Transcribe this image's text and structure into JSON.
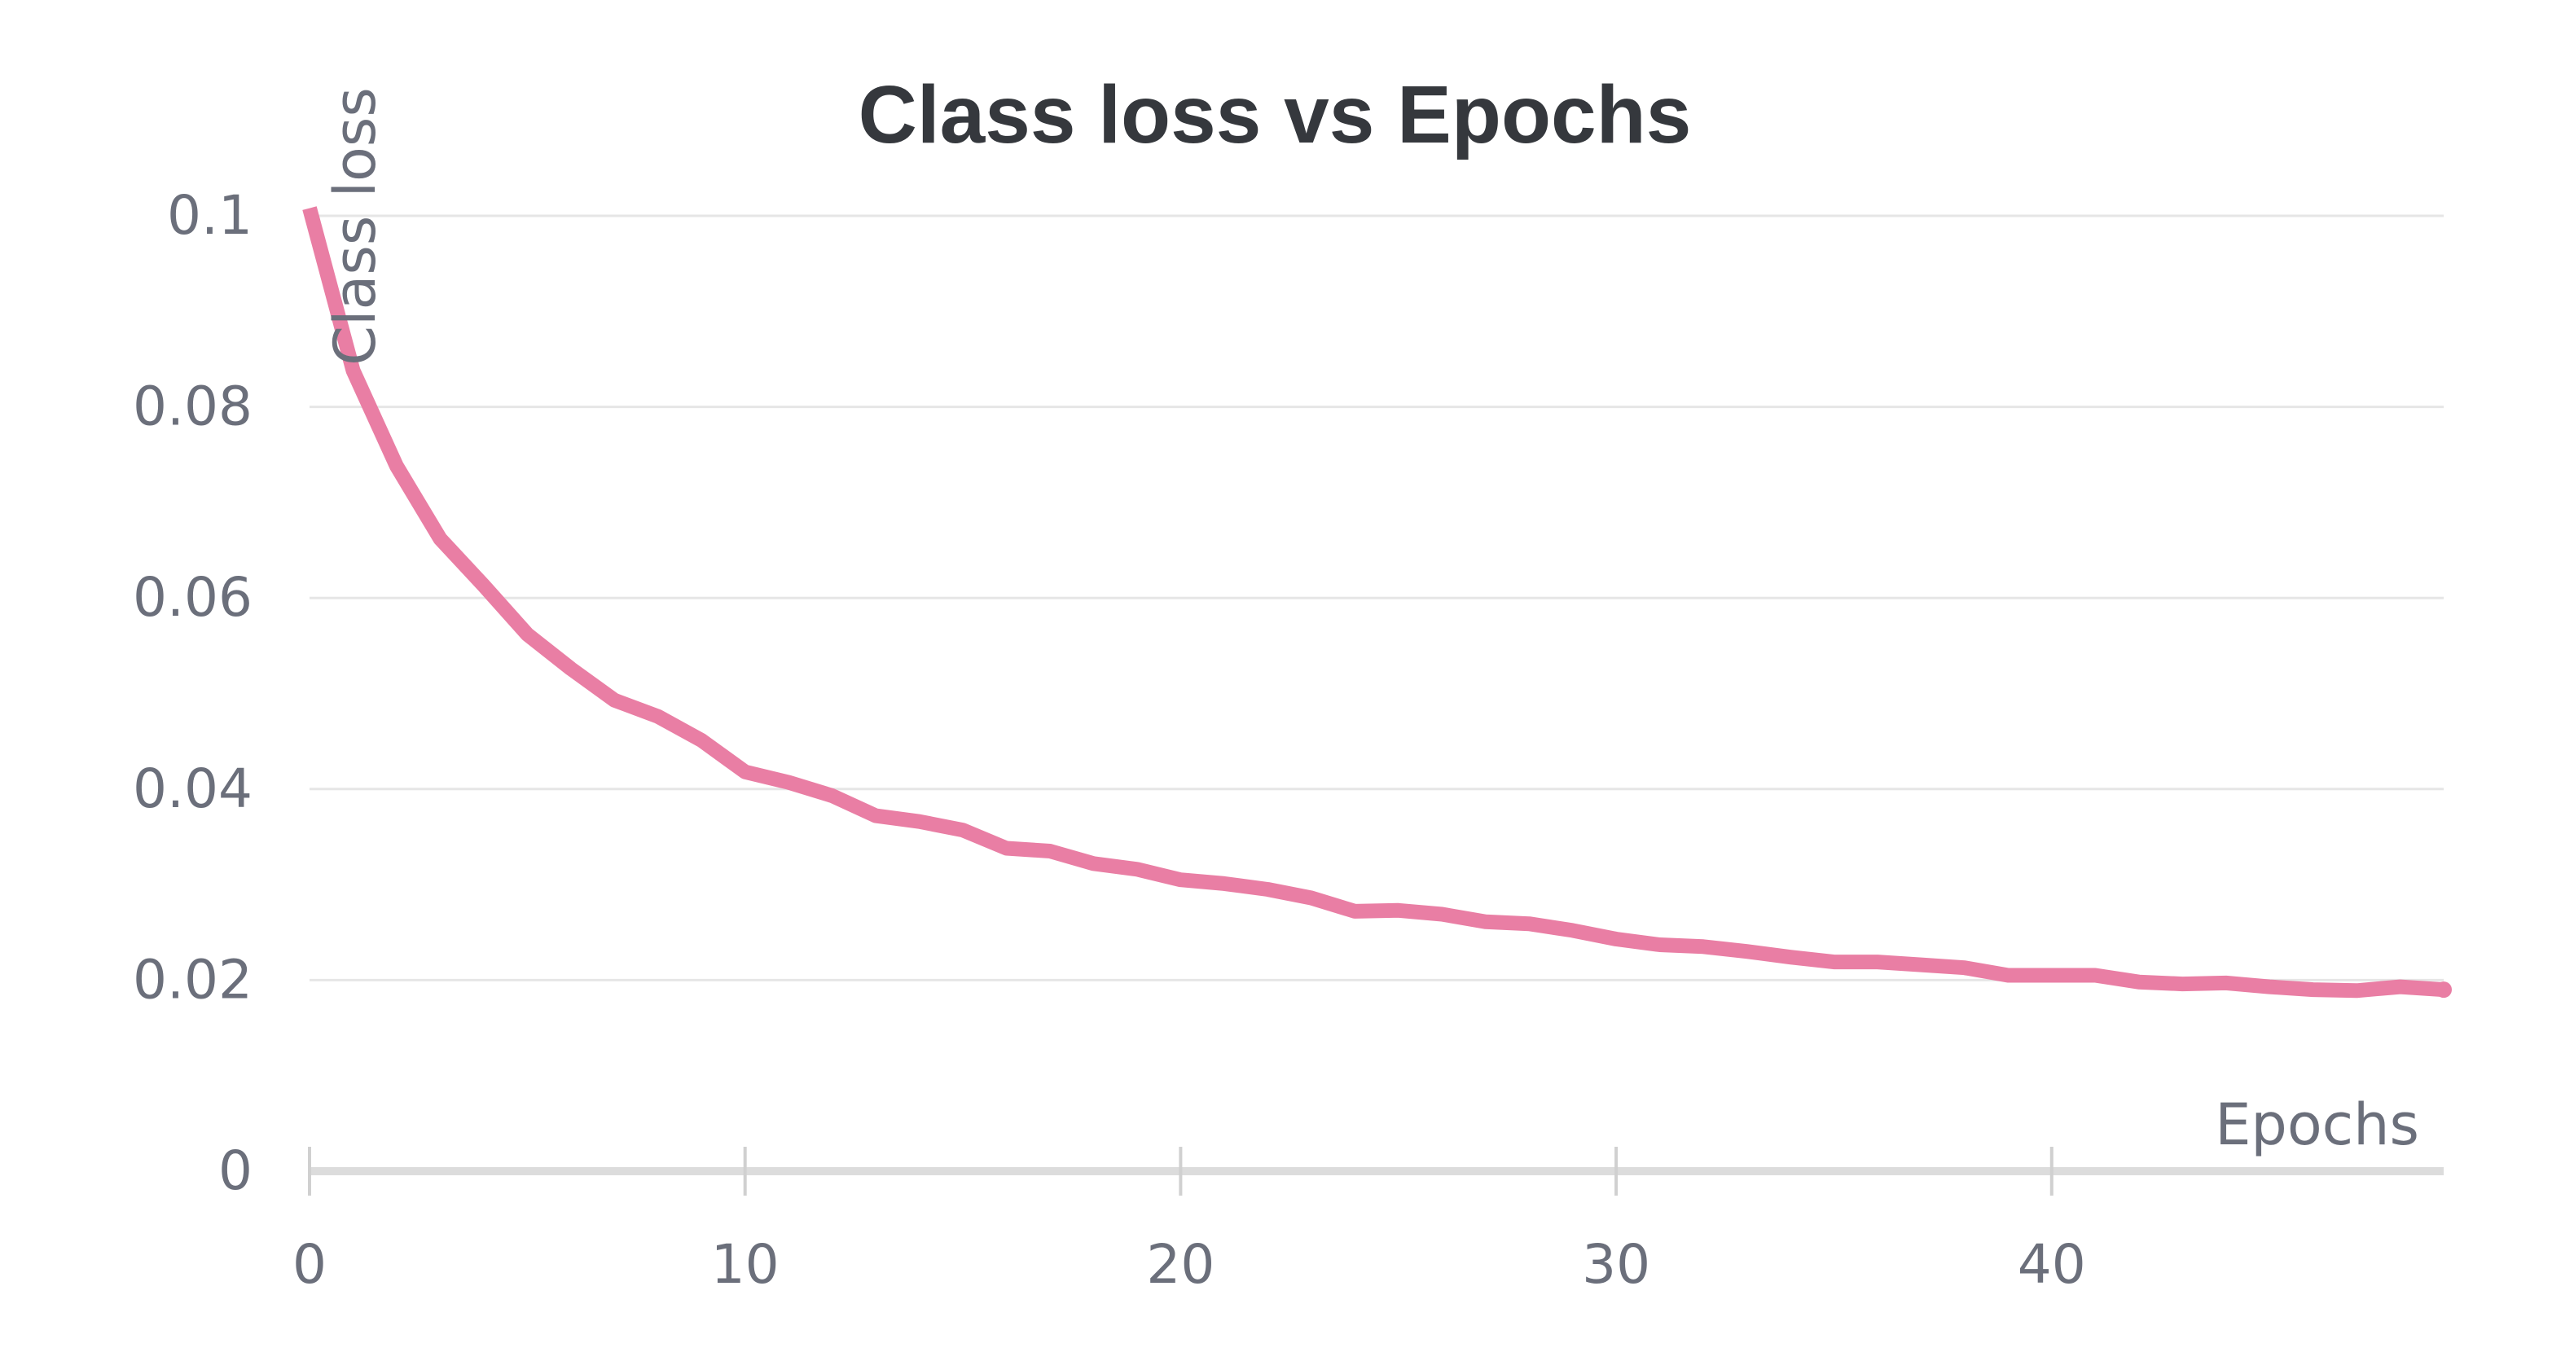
{
  "chart_data": {
    "type": "line",
    "title": "Class loss vs Epochs",
    "xlabel": "Epochs",
    "ylabel": "Class loss",
    "xlim": [
      0,
      49
    ],
    "ylim": [
      0,
      0.1
    ],
    "x_ticks": [
      "0",
      "10",
      "20",
      "30",
      "40"
    ],
    "x_tick_values": [
      0,
      10,
      20,
      30,
      40
    ],
    "y_ticks": [
      "0",
      "0.02",
      "0.04",
      "0.06",
      "0.08",
      "0.1"
    ],
    "y_tick_values": [
      0,
      0.02,
      0.04,
      0.06,
      0.08,
      0.1
    ],
    "grid": true,
    "legend": "none",
    "color": "#e97ea4",
    "series": [
      {
        "x": [
          0,
          1,
          2,
          3,
          4,
          5,
          6,
          7,
          8,
          9,
          10,
          11,
          12,
          13,
          14,
          15,
          16,
          17,
          18,
          19,
          20,
          21,
          22,
          23,
          24,
          25,
          26,
          27,
          28,
          29,
          30,
          31,
          32,
          33,
          34,
          35,
          36,
          37,
          38,
          39,
          40,
          41,
          42,
          43,
          44,
          45,
          46,
          47,
          48,
          49
        ],
        "values": [
          0.1008,
          0.0838,
          0.0738,
          0.0662,
          0.0613,
          0.0562,
          0.0526,
          0.0493,
          0.0476,
          0.0451,
          0.0418,
          0.0407,
          0.0393,
          0.0372,
          0.0366,
          0.0357,
          0.0338,
          0.0335,
          0.0322,
          0.0316,
          0.0305,
          0.0301,
          0.0295,
          0.0286,
          0.0272,
          0.0273,
          0.0269,
          0.0261,
          0.0259,
          0.0252,
          0.0243,
          0.0237,
          0.0235,
          0.023,
          0.0224,
          0.0219,
          0.0219,
          0.0216,
          0.0213,
          0.0205,
          0.0205,
          0.0205,
          0.0198,
          0.0196,
          0.0197,
          0.0193,
          0.019,
          0.0189,
          0.0193,
          0.019
        ]
      }
    ]
  }
}
